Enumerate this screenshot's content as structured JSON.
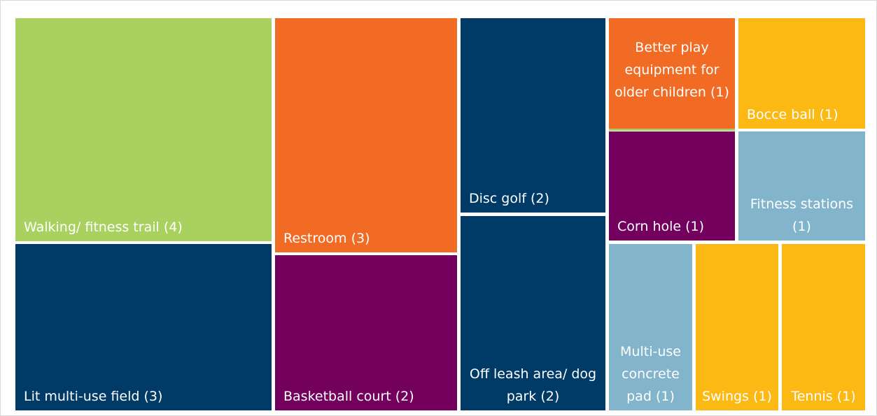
{
  "chart_data": {
    "type": "treemap",
    "categories": [
      "Walking/ fitness trail",
      "Lit multi-use field",
      "Restroom",
      "Basketball court",
      "Disc golf",
      "Off leash area/ dog park",
      "Better play equipment for older children",
      "Corn hole",
      "Bocce ball",
      "Fitness stations",
      "Multi-use concrete pad",
      "Swings",
      "Tennis"
    ],
    "values": [
      4,
      3,
      3,
      2,
      2,
      2,
      1,
      1,
      1,
      1,
      1,
      1,
      1
    ],
    "value_labels": [
      "(4)",
      "(3)",
      "(3)",
      "(2)",
      "(2)",
      "(2)",
      "(1)",
      "(1)",
      "(1)",
      "(1)",
      "(1)",
      "(1)",
      "(1)"
    ],
    "colors": [
      "#a9d15f",
      "#003a66",
      "#f26b25",
      "#72005c",
      "#003a66",
      "#003a66",
      "#f26b25",
      "#72005c",
      "#fdb913",
      "#82b4cb",
      "#82b4cb",
      "#fdb913",
      "#fdb913"
    ]
  }
}
